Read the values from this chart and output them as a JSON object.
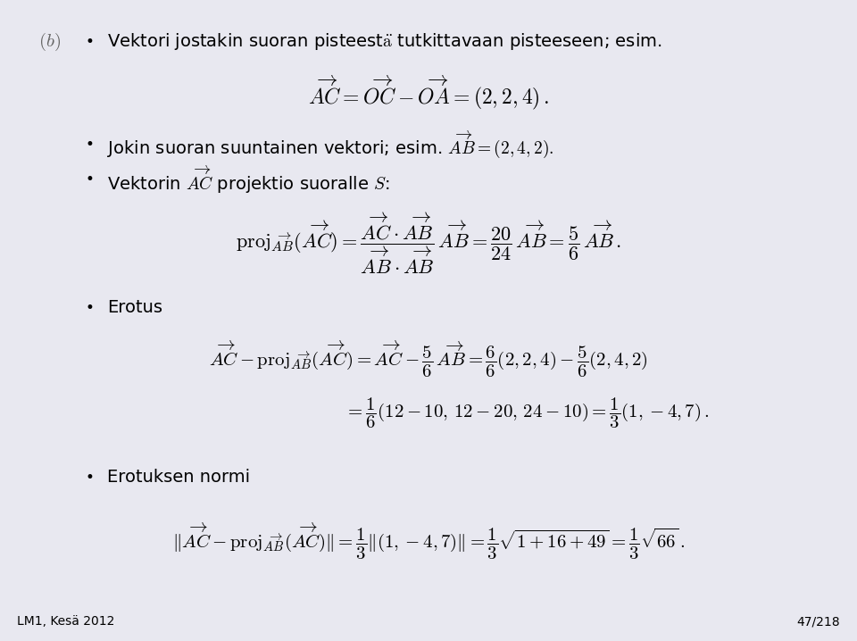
{
  "background_color": "#e8e8f0",
  "footer_left": "LM1, Kesä 2012",
  "footer_right": "47/218"
}
